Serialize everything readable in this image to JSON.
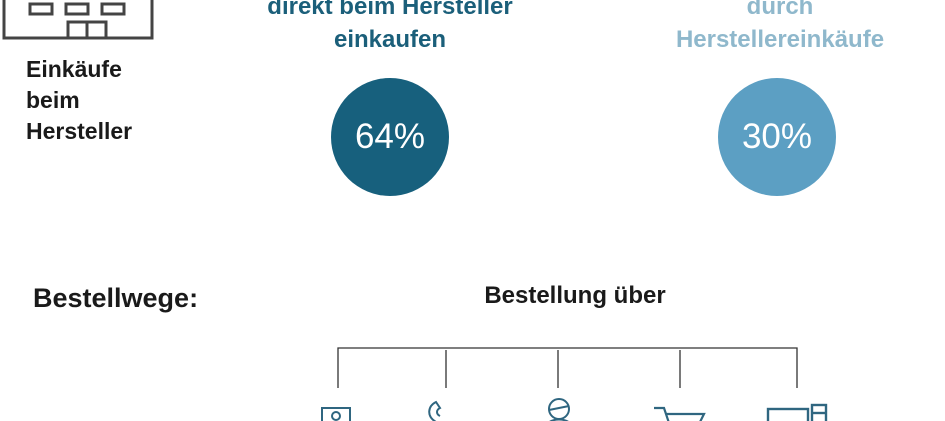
{
  "factory_label": [
    "Einkäufe",
    "beim",
    "Hersteller"
  ],
  "stat_left": {
    "heading": [
      "direkt beim Hersteller",
      "einkaufen"
    ],
    "value": "64%",
    "color": "#17607d"
  },
  "stat_right": {
    "heading": [
      "durch",
      "Herstellereinkäufe"
    ],
    "value": "30%",
    "color": "#5c9fc3"
  },
  "bestellwege_label": "Bestellwege:",
  "bestellung_label": "Bestellung über",
  "channel_icons": [
    "email-icon",
    "phone-icon",
    "person-icon",
    "cart-icon",
    "devices-icon"
  ]
}
